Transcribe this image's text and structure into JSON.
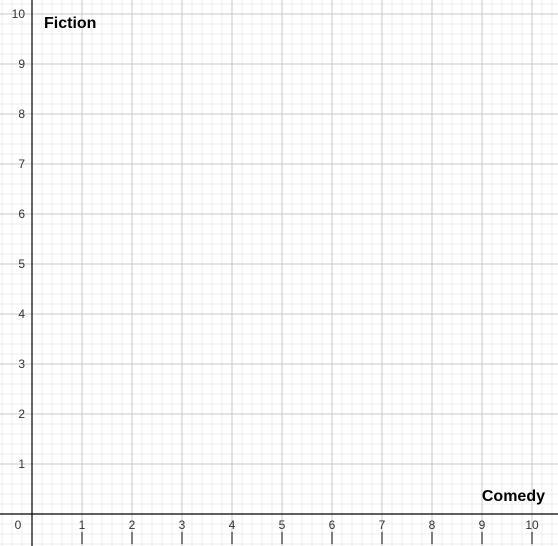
{
  "chart_data": {
    "type": "scatter",
    "xlabel": "Comedy",
    "ylabel": "Fiction",
    "xlim": [
      0,
      10
    ],
    "ylim": [
      0,
      10
    ],
    "x_ticks": [
      "0",
      "1",
      "2",
      "3",
      "4",
      "5",
      "6",
      "7",
      "8",
      "9",
      "10"
    ],
    "y_ticks": [
      "1",
      "2",
      "3",
      "4",
      "5",
      "6",
      "7",
      "8",
      "9",
      "10"
    ],
    "grid": true,
    "minor_grid_per_unit": 5,
    "series": [],
    "colors": {
      "major_grid": "#c8c8c8",
      "minor_grid": "#ececec",
      "axis": "#000000"
    }
  }
}
